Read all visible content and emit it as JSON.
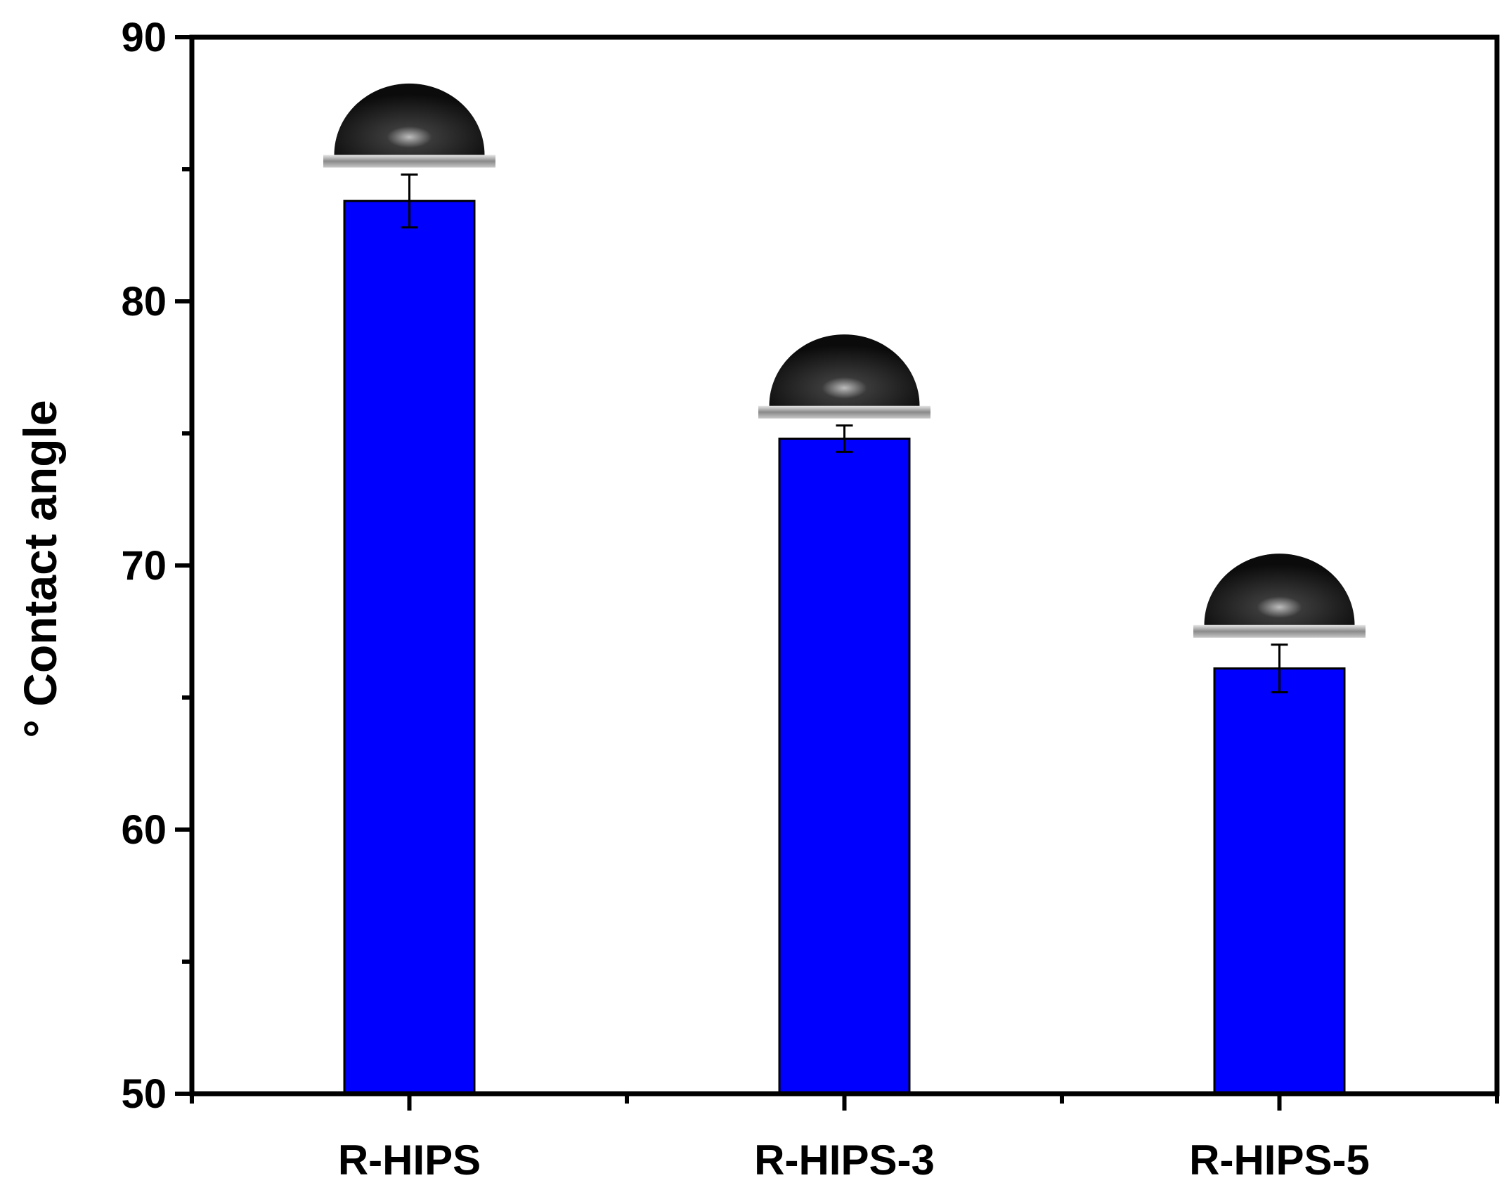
{
  "chart_data": {
    "type": "bar",
    "title": "",
    "xlabel": "",
    "ylabel": "° Contact angle",
    "categories": [
      "R-HIPS",
      "R-HIPS-3",
      "R-HIPS-5"
    ],
    "values": [
      83.8,
      74.8,
      66.1
    ],
    "error": [
      1.0,
      0.5,
      0.9
    ],
    "ylim": [
      50,
      90
    ],
    "yticks": [
      50,
      60,
      70,
      80,
      90
    ],
    "yminor_step": 5,
    "bar_color": "#0000ff",
    "bar_edge_color": "#000000",
    "grid": false,
    "inset_images": [
      "water-droplet-photo",
      "water-droplet-photo",
      "water-droplet-photo"
    ]
  }
}
